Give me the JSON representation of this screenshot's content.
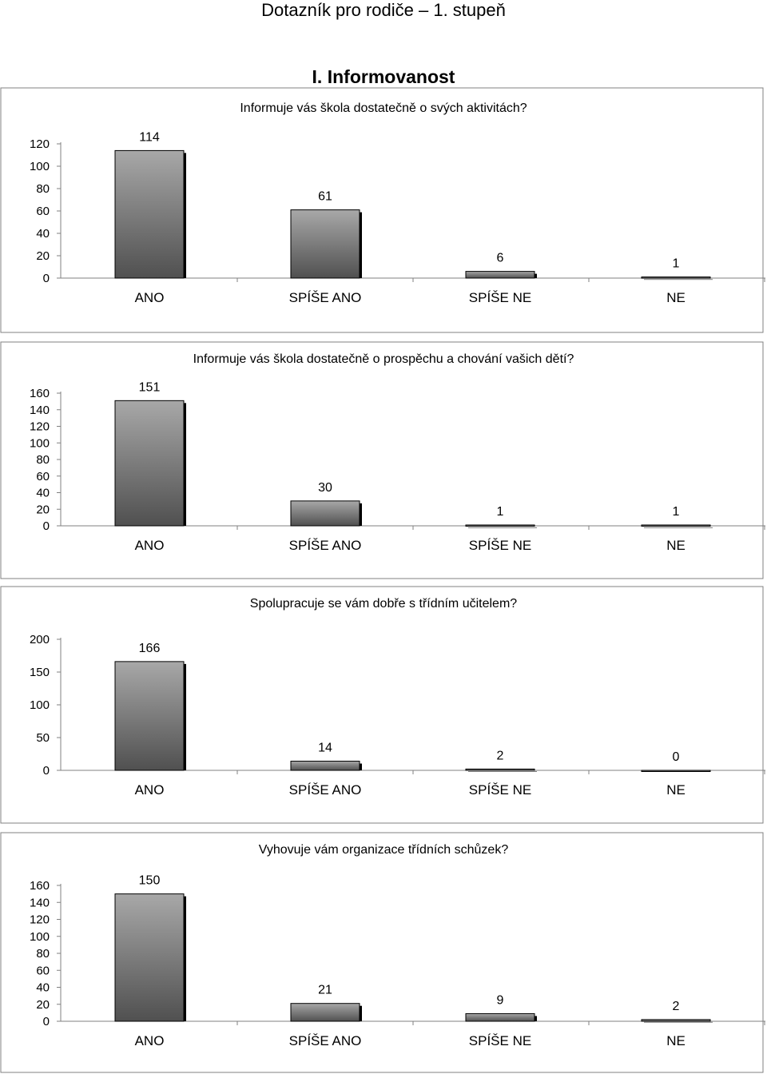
{
  "document": {
    "title": "Dotazník pro rodiče – 1. stupeň",
    "section": "I. Informovanost"
  },
  "colors": {
    "bar_top": "#a8a8a8",
    "bar_bottom": "#505050",
    "bar_shadow": "#000000",
    "frame": "#808080",
    "axis": "#808080"
  },
  "chart_data": [
    {
      "type": "bar",
      "title": "Informuje vás škola dostatečně o svých aktivitách?",
      "categories": [
        "ANO",
        "SPÍŠE ANO",
        "SPÍŠE NE",
        "NE"
      ],
      "values": [
        114,
        61,
        6,
        1
      ],
      "yticks": [
        0,
        20,
        40,
        60,
        80,
        100,
        120
      ],
      "ylim": [
        0,
        120
      ],
      "grid": false,
      "legend": "none"
    },
    {
      "type": "bar",
      "title": "Informuje vás škola dostatečně o prospěchu a chování vašich dětí?",
      "categories": [
        "ANO",
        "SPÍŠE ANO",
        "SPÍŠE NE",
        "NE"
      ],
      "values": [
        151,
        30,
        1,
        1
      ],
      "yticks": [
        0,
        20,
        40,
        60,
        80,
        100,
        120,
        140,
        160
      ],
      "ylim": [
        0,
        160
      ],
      "grid": false,
      "legend": "none"
    },
    {
      "type": "bar",
      "title": "Spolupracuje se vám dobře s třídním učitelem?",
      "categories": [
        "ANO",
        "SPÍŠE ANO",
        "SPÍŠE NE",
        "NE"
      ],
      "values": [
        166,
        14,
        2,
        0
      ],
      "yticks": [
        0,
        50,
        100,
        150,
        200
      ],
      "ylim": [
        0,
        200
      ],
      "grid": false,
      "legend": "none"
    },
    {
      "type": "bar",
      "title": "Vyhovuje vám organizace třídních schůzek?",
      "categories": [
        "ANO",
        "SPÍŠE ANO",
        "SPÍŠE NE",
        "NE"
      ],
      "values": [
        150,
        21,
        9,
        2
      ],
      "yticks": [
        0,
        20,
        40,
        60,
        80,
        100,
        120,
        140,
        160
      ],
      "ylim": [
        0,
        160
      ],
      "grid": false,
      "legend": "none"
    }
  ]
}
